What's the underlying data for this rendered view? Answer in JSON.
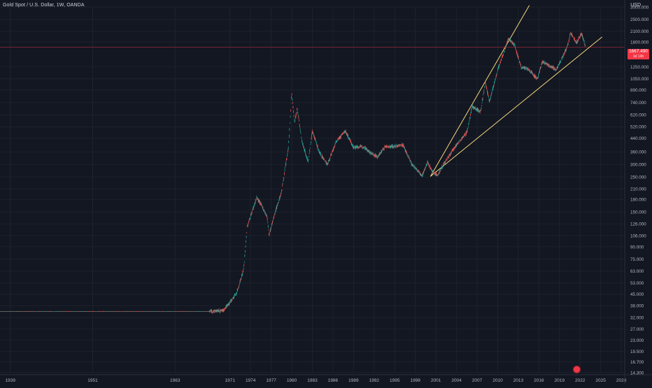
{
  "header": {
    "symbol_title": "Gold Spot / U.S. Dollar, 1W, OANDA",
    "currency": "USD"
  },
  "price_badge": {
    "price": "1667.490",
    "countdown": "1d 14h"
  },
  "colors": {
    "background": "#131722",
    "grid": "#1e222d",
    "up_candle": "#26a69a",
    "down_candle": "#ef5350",
    "trendline": "#f5d77a",
    "price_line": "#f23645",
    "axis_text": "#b2b5be"
  },
  "icons": {
    "event_marker": "flag-icon"
  },
  "chart_data": {
    "type": "candlestick",
    "title": "Gold Spot / U.S. Dollar, 1W, OANDA",
    "scale": "log",
    "ylim": [
      14.3,
      3000
    ],
    "xlim": [
      1937.5,
      2028.5
    ],
    "x_ticks": [
      "1939",
      "1951",
      "1963",
      "1971",
      "1974",
      "1977",
      "1980",
      "1983",
      "1986",
      "1989",
      "1992",
      "1995",
      "1998",
      "2001",
      "2004",
      "2007",
      "2010",
      "2013",
      "2016",
      "2019",
      "2022",
      "2025",
      "2028"
    ],
    "y_ticks": [
      "3000.000",
      "2500.000",
      "2100.000",
      "1800.000",
      "1250.000",
      "1050.000",
      "890.000",
      "740.000",
      "620.000",
      "520.000",
      "440.000",
      "360.000",
      "300.000",
      "250.000",
      "210.000",
      "180.000",
      "150.000",
      "126.000",
      "106.000",
      "90.000",
      "75.000",
      "63.000",
      "53.000",
      "45.000",
      "38.000",
      "32.000",
      "27.000",
      "23.000",
      "19.500",
      "16.700",
      "14.300"
    ],
    "last_price": 1667.49,
    "series": [
      {
        "values": [
          [
            1937.5,
            35
          ],
          [
            1968.0,
            35
          ],
          [
            1970.0,
            35.5
          ],
          [
            1971.0,
            40
          ],
          [
            1972.0,
            46
          ],
          [
            1973.0,
            65
          ],
          [
            1973.5,
            120
          ],
          [
            1974.2,
            150
          ],
          [
            1974.9,
            185
          ],
          [
            1975.6,
            165
          ],
          [
            1976.4,
            140
          ],
          [
            1976.7,
            107
          ],
          [
            1977.5,
            145
          ],
          [
            1978.5,
            200
          ],
          [
            1979.5,
            380
          ],
          [
            1980.0,
            850
          ],
          [
            1980.4,
            550
          ],
          [
            1980.8,
            680
          ],
          [
            1981.5,
            420
          ],
          [
            1982.4,
            310
          ],
          [
            1983.0,
            490
          ],
          [
            1984.0,
            360
          ],
          [
            1985.2,
            300
          ],
          [
            1986.5,
            420
          ],
          [
            1987.8,
            490
          ],
          [
            1989.0,
            385
          ],
          [
            1990.5,
            390
          ],
          [
            1991.5,
            355
          ],
          [
            1992.5,
            335
          ],
          [
            1993.6,
            390
          ],
          [
            1995.0,
            390
          ],
          [
            1996.2,
            400
          ],
          [
            1997.5,
            300
          ],
          [
            1999.0,
            255
          ],
          [
            1999.8,
            310
          ],
          [
            2000.5,
            270
          ],
          [
            2001.2,
            255
          ],
          [
            2002.5,
            320
          ],
          [
            2004.0,
            400
          ],
          [
            2005.5,
            480
          ],
          [
            2006.3,
            700
          ],
          [
            2007.5,
            650
          ],
          [
            2008.2,
            1000
          ],
          [
            2008.8,
            750
          ],
          [
            2010.0,
            1200
          ],
          [
            2011.6,
            1900
          ],
          [
            2012.5,
            1700
          ],
          [
            2013.4,
            1250
          ],
          [
            2014.5,
            1200
          ],
          [
            2015.8,
            1050
          ],
          [
            2016.5,
            1350
          ],
          [
            2018.5,
            1200
          ],
          [
            2019.5,
            1450
          ],
          [
            2020.3,
            1750
          ],
          [
            2020.6,
            2060
          ],
          [
            2021.5,
            1780
          ],
          [
            2022.2,
            2050
          ],
          [
            2022.8,
            1667.49
          ]
        ]
      }
    ],
    "trendlines": [
      {
        "from": [
          2000.2,
          252
        ],
        "to": [
          2014.6,
          3070
        ]
      },
      {
        "from": [
          2000.2,
          252
        ],
        "to": [
          2025.2,
          1935
        ]
      }
    ],
    "grid": true,
    "legend": "none"
  }
}
